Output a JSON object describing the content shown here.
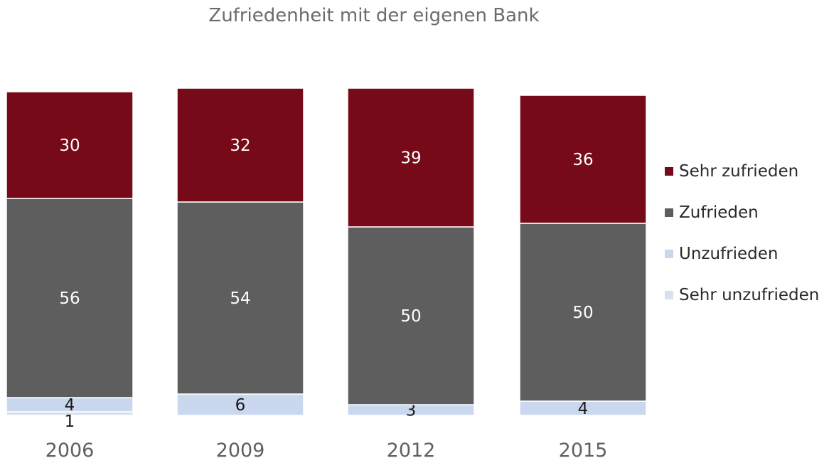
{
  "chart_data": {
    "type": "bar",
    "stacked": true,
    "title": "Zufriedenheit mit der eigenen Bank",
    "xlabel": "",
    "ylabel": "",
    "categories": [
      "2006",
      "2009",
      "2012",
      "2015"
    ],
    "series": [
      {
        "name": "Sehr unzufrieden",
        "color": "#d9e0ea",
        "values": [
          1,
          null,
          null,
          null
        ],
        "label_color": "#1a1a1a"
      },
      {
        "name": "Unzufrieden",
        "color": "#c9d7ef",
        "values": [
          4,
          6,
          3,
          4
        ],
        "label_color": "#1a1a1a"
      },
      {
        "name": "Zufrieden",
        "color": "#5e5e5e",
        "values": [
          56,
          54,
          50,
          50
        ],
        "label_color": "#ffffff"
      },
      {
        "name": "Sehr zufrieden",
        "color": "#760a19",
        "values": [
          30,
          32,
          39,
          36
        ],
        "label_color": "#ffffff"
      }
    ],
    "legend_position": "right",
    "grid": false
  }
}
